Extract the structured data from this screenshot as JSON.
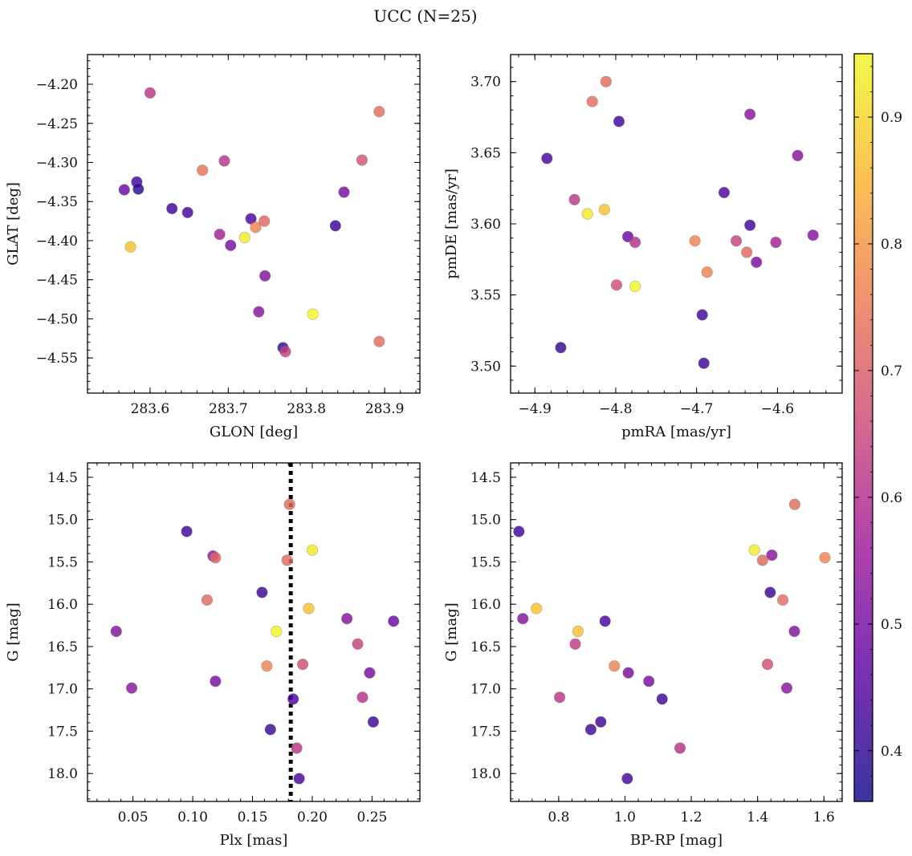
{
  "title": "UCC (N=25)",
  "colormap": {
    "name": "plasma",
    "range": [
      0.36,
      0.95
    ],
    "ticks": [
      0.4,
      0.5,
      0.6,
      0.7,
      0.8,
      0.9
    ],
    "tick_labels": [
      "0.4",
      "0.5",
      "0.6",
      "0.7",
      "0.8",
      "0.9"
    ],
    "stops": [
      "#0d0887",
      "#5b02a3",
      "#9a179b",
      "#cb4678",
      "#eb7852",
      "#fbb32f",
      "#eff821"
    ]
  },
  "chart_data": [
    {
      "type": "scatter",
      "xlabel": "GLON [deg]",
      "ylabel": "GLAT [deg]",
      "xlim": [
        283.52,
        283.945
      ],
      "ylim": [
        -4.595,
        -4.162
      ],
      "y_inverted": false,
      "xticks": [
        283.6,
        283.7,
        283.8,
        283.9
      ],
      "xtick_labels": [
        "283.6",
        "283.7",
        "283.8",
        "283.9"
      ],
      "yticks": [
        -4.2,
        -4.25,
        -4.3,
        -4.35,
        -4.4,
        -4.45,
        -4.5,
        -4.55
      ],
      "ytick_labels": [
        "−4.20",
        "−4.25",
        "−4.30",
        "−4.35",
        "−4.40",
        "−4.45",
        "−4.50",
        "−4.55"
      ],
      "points": [
        {
          "x": 283.6,
          "y": -4.211,
          "c": 0.62
        },
        {
          "x": 283.893,
          "y": -4.235,
          "c": 0.73
        },
        {
          "x": 283.871,
          "y": -4.297,
          "c": 0.68
        },
        {
          "x": 283.695,
          "y": -4.298,
          "c": 0.61
        },
        {
          "x": 283.667,
          "y": -4.31,
          "c": 0.74
        },
        {
          "x": 283.583,
          "y": -4.325,
          "c": 0.42
        },
        {
          "x": 283.567,
          "y": -4.335,
          "c": 0.48
        },
        {
          "x": 283.585,
          "y": -4.334,
          "c": 0.4
        },
        {
          "x": 283.848,
          "y": -4.338,
          "c": 0.5
        },
        {
          "x": 283.628,
          "y": -4.359,
          "c": 0.42
        },
        {
          "x": 283.648,
          "y": -4.364,
          "c": 0.43
        },
        {
          "x": 283.729,
          "y": -4.372,
          "c": 0.43
        },
        {
          "x": 283.746,
          "y": -4.375,
          "c": 0.72
        },
        {
          "x": 283.837,
          "y": -4.381,
          "c": 0.42
        },
        {
          "x": 283.735,
          "y": -4.383,
          "c": 0.77
        },
        {
          "x": 283.689,
          "y": -4.392,
          "c": 0.57
        },
        {
          "x": 283.721,
          "y": -4.396,
          "c": 0.93
        },
        {
          "x": 283.703,
          "y": -4.406,
          "c": 0.5
        },
        {
          "x": 283.575,
          "y": -4.408,
          "c": 0.87
        },
        {
          "x": 283.747,
          "y": -4.445,
          "c": 0.52
        },
        {
          "x": 283.739,
          "y": -4.491,
          "c": 0.53
        },
        {
          "x": 283.808,
          "y": -4.494,
          "c": 0.95
        },
        {
          "x": 283.893,
          "y": -4.529,
          "c": 0.73
        },
        {
          "x": 283.77,
          "y": -4.537,
          "c": 0.41
        },
        {
          "x": 283.773,
          "y": -4.542,
          "c": 0.64
        }
      ]
    },
    {
      "type": "scatter",
      "xlabel": "pmRA [mas/yr]",
      "ylabel": "pmDE [mas/yr]",
      "xlim": [
        -4.93,
        -4.52
      ],
      "ylim": [
        3.481,
        3.719
      ],
      "y_inverted": false,
      "xticks": [
        -4.9,
        -4.8,
        -4.7,
        -4.6
      ],
      "xtick_labels": [
        "−4.9",
        "−4.8",
        "−4.7",
        "−4.6"
      ],
      "yticks": [
        3.5,
        3.55,
        3.6,
        3.65,
        3.7
      ],
      "ytick_labels": [
        "3.50",
        "3.55",
        "3.60",
        "3.65",
        "3.70"
      ],
      "points": [
        {
          "x": -4.812,
          "y": 3.7,
          "c": 0.73
        },
        {
          "x": -4.829,
          "y": 3.686,
          "c": 0.73
        },
        {
          "x": -4.796,
          "y": 3.672,
          "c": 0.42
        },
        {
          "x": -4.634,
          "y": 3.677,
          "c": 0.53
        },
        {
          "x": -4.885,
          "y": 3.646,
          "c": 0.43
        },
        {
          "x": -4.575,
          "y": 3.648,
          "c": 0.52
        },
        {
          "x": -4.666,
          "y": 3.622,
          "c": 0.44
        },
        {
          "x": -4.851,
          "y": 3.617,
          "c": 0.62
        },
        {
          "x": -4.814,
          "y": 3.61,
          "c": 0.87
        },
        {
          "x": -4.835,
          "y": 3.607,
          "c": 0.93
        },
        {
          "x": -4.634,
          "y": 3.599,
          "c": 0.42
        },
        {
          "x": -4.785,
          "y": 3.591,
          "c": 0.48
        },
        {
          "x": -4.556,
          "y": 3.592,
          "c": 0.52
        },
        {
          "x": -4.702,
          "y": 3.588,
          "c": 0.77
        },
        {
          "x": -4.651,
          "y": 3.588,
          "c": 0.64
        },
        {
          "x": -4.602,
          "y": 3.587,
          "c": 0.57
        },
        {
          "x": -4.776,
          "y": 3.587,
          "c": 0.61
        },
        {
          "x": -4.638,
          "y": 3.58,
          "c": 0.72
        },
        {
          "x": -4.626,
          "y": 3.573,
          "c": 0.5
        },
        {
          "x": -4.687,
          "y": 3.566,
          "c": 0.77
        },
        {
          "x": -4.799,
          "y": 3.557,
          "c": 0.67
        },
        {
          "x": -4.776,
          "y": 3.556,
          "c": 0.95
        },
        {
          "x": -4.693,
          "y": 3.536,
          "c": 0.42
        },
        {
          "x": -4.868,
          "y": 3.513,
          "c": 0.41
        },
        {
          "x": -4.691,
          "y": 3.502,
          "c": 0.42
        }
      ]
    },
    {
      "type": "scatter",
      "xlabel": "Plx [mas]",
      "ylabel": "G [mag]",
      "xlim": [
        0.012,
        0.29
      ],
      "ylim": [
        18.33,
        14.33
      ],
      "y_inverted": true,
      "xticks": [
        0.05,
        0.1,
        0.15,
        0.2,
        0.25
      ],
      "xtick_labels": [
        "0.05",
        "0.10",
        "0.15",
        "0.20",
        "0.25"
      ],
      "yticks": [
        14.5,
        15.0,
        15.5,
        16.0,
        16.5,
        17.0,
        17.5,
        18.0
      ],
      "ytick_labels": [
        "14.5",
        "15.0",
        "15.5",
        "16.0",
        "16.5",
        "17.0",
        "17.5",
        "18.0"
      ],
      "vline": 0.182,
      "points": [
        {
          "x": 0.181,
          "y": 14.82,
          "c": 0.73
        },
        {
          "x": 0.095,
          "y": 15.14,
          "c": 0.42
        },
        {
          "x": 0.2,
          "y": 15.36,
          "c": 0.93
        },
        {
          "x": 0.117,
          "y": 15.43,
          "c": 0.53
        },
        {
          "x": 0.119,
          "y": 15.45,
          "c": 0.72
        },
        {
          "x": 0.179,
          "y": 15.48,
          "c": 0.73
        },
        {
          "x": 0.158,
          "y": 15.86,
          "c": 0.42
        },
        {
          "x": 0.112,
          "y": 15.95,
          "c": 0.72
        },
        {
          "x": 0.197,
          "y": 16.05,
          "c": 0.87
        },
        {
          "x": 0.229,
          "y": 16.17,
          "c": 0.52
        },
        {
          "x": 0.268,
          "y": 16.2,
          "c": 0.48
        },
        {
          "x": 0.036,
          "y": 16.32,
          "c": 0.52
        },
        {
          "x": 0.17,
          "y": 16.32,
          "c": 0.95
        },
        {
          "x": 0.238,
          "y": 16.47,
          "c": 0.64
        },
        {
          "x": 0.192,
          "y": 16.71,
          "c": 0.67
        },
        {
          "x": 0.162,
          "y": 16.73,
          "c": 0.77
        },
        {
          "x": 0.248,
          "y": 16.81,
          "c": 0.5
        },
        {
          "x": 0.119,
          "y": 16.91,
          "c": 0.5
        },
        {
          "x": 0.049,
          "y": 16.99,
          "c": 0.53
        },
        {
          "x": 0.242,
          "y": 17.1,
          "c": 0.61
        },
        {
          "x": 0.184,
          "y": 17.12,
          "c": 0.44
        },
        {
          "x": 0.251,
          "y": 17.39,
          "c": 0.42
        },
        {
          "x": 0.165,
          "y": 17.48,
          "c": 0.42
        },
        {
          "x": 0.187,
          "y": 17.7,
          "c": 0.62
        },
        {
          "x": 0.189,
          "y": 18.06,
          "c": 0.43
        }
      ]
    },
    {
      "type": "scatter",
      "xlabel": "BP-RP [mag]",
      "ylabel": "G [mag]",
      "xlim": [
        0.655,
        1.655
      ],
      "ylim": [
        18.33,
        14.33
      ],
      "y_inverted": true,
      "xticks": [
        0.8,
        1.0,
        1.2,
        1.4,
        1.6
      ],
      "xtick_labels": [
        "0.8",
        "1.0",
        "1.2",
        "1.4",
        "1.6"
      ],
      "yticks": [
        14.5,
        15.0,
        15.5,
        16.0,
        16.5,
        17.0,
        17.5,
        18.0
      ],
      "ytick_labels": [
        "14.5",
        "15.0",
        "15.5",
        "16.0",
        "16.5",
        "17.0",
        "17.5",
        "18.0"
      ],
      "points": [
        {
          "x": 1.512,
          "y": 14.82,
          "c": 0.73
        },
        {
          "x": 0.68,
          "y": 15.14,
          "c": 0.42
        },
        {
          "x": 1.39,
          "y": 15.36,
          "c": 0.93
        },
        {
          "x": 1.443,
          "y": 15.42,
          "c": 0.53
        },
        {
          "x": 1.603,
          "y": 15.45,
          "c": 0.77
        },
        {
          "x": 1.415,
          "y": 15.48,
          "c": 0.72
        },
        {
          "x": 1.438,
          "y": 15.86,
          "c": 0.42
        },
        {
          "x": 1.476,
          "y": 15.95,
          "c": 0.73
        },
        {
          "x": 0.733,
          "y": 16.05,
          "c": 0.87
        },
        {
          "x": 0.692,
          "y": 16.17,
          "c": 0.52
        },
        {
          "x": 0.94,
          "y": 16.2,
          "c": 0.43
        },
        {
          "x": 0.858,
          "y": 16.32,
          "c": 0.87
        },
        {
          "x": 1.511,
          "y": 16.32,
          "c": 0.52
        },
        {
          "x": 0.85,
          "y": 16.47,
          "c": 0.63
        },
        {
          "x": 1.43,
          "y": 16.71,
          "c": 0.67
        },
        {
          "x": 0.968,
          "y": 16.73,
          "c": 0.77
        },
        {
          "x": 1.01,
          "y": 16.81,
          "c": 0.5
        },
        {
          "x": 1.072,
          "y": 16.91,
          "c": 0.5
        },
        {
          "x": 1.488,
          "y": 16.99,
          "c": 0.53
        },
        {
          "x": 0.803,
          "y": 17.1,
          "c": 0.62
        },
        {
          "x": 1.112,
          "y": 17.12,
          "c": 0.42
        },
        {
          "x": 0.927,
          "y": 17.39,
          "c": 0.42
        },
        {
          "x": 0.897,
          "y": 17.48,
          "c": 0.42
        },
        {
          "x": 1.166,
          "y": 17.7,
          "c": 0.61
        },
        {
          "x": 1.007,
          "y": 18.06,
          "c": 0.43
        }
      ]
    }
  ]
}
